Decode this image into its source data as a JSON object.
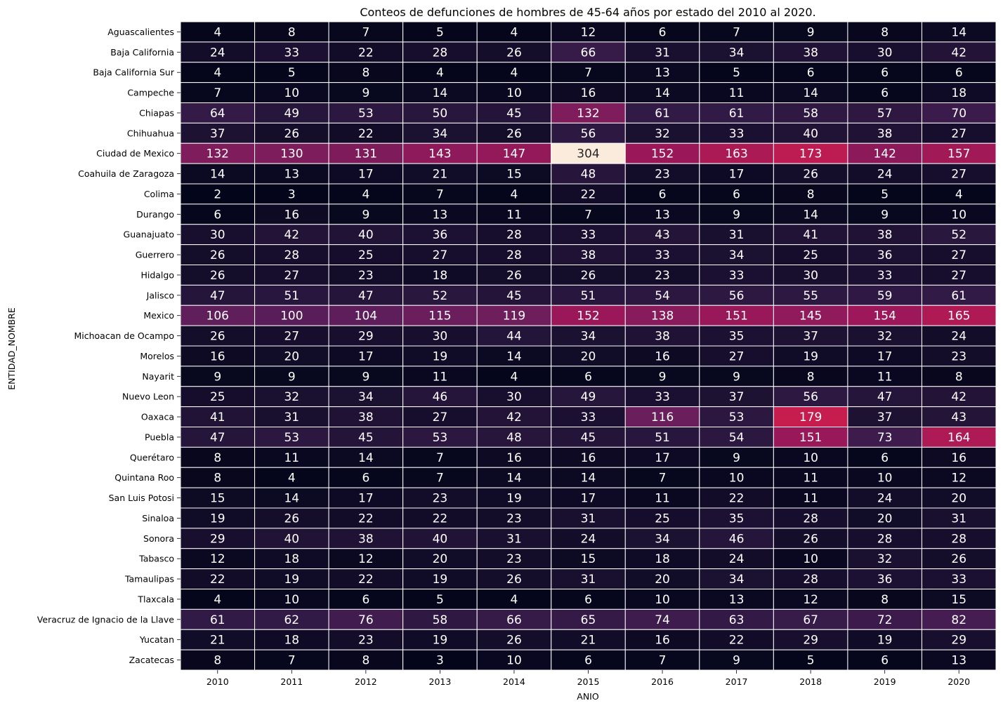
{
  "chart_data": {
    "type": "heatmap",
    "title": "Conteos de defunciones de hombres de 45-64 años por estado del 2010 al 2020.",
    "xlabel": "ANIO",
    "ylabel": "ENTIDAD_NOMBRE",
    "colormap": "rocket",
    "color_range": [
      2,
      304
    ],
    "cell_border_color": "#ffffff",
    "columns": [
      "2010",
      "2011",
      "2012",
      "2013",
      "2014",
      "2015",
      "2016",
      "2017",
      "2018",
      "2019",
      "2020"
    ],
    "rows": [
      "Aguascalientes",
      "Baja California",
      "Baja California Sur",
      "Campeche",
      "Chiapas",
      "Chihuahua",
      "Ciudad de Mexico",
      "Coahuila de Zaragoza",
      "Colima",
      "Durango",
      "Guanajuato",
      "Guerrero",
      "Hidalgo",
      "Jalisco",
      "Mexico",
      "Michoacan de Ocampo",
      "Morelos",
      "Nayarit",
      "Nuevo Leon",
      "Oaxaca",
      "Puebla",
      "Querétaro",
      "Quintana Roo",
      "San Luis Potosi",
      "Sinaloa",
      "Sonora",
      "Tabasco",
      "Tamaulipas",
      "Tlaxcala",
      "Veracruz de Ignacio de la Llave",
      "Yucatan",
      "Zacatecas"
    ],
    "values": [
      [
        4,
        8,
        7,
        5,
        4,
        12,
        6,
        7,
        9,
        8,
        14
      ],
      [
        24,
        33,
        22,
        28,
        26,
        66,
        31,
        34,
        38,
        30,
        42
      ],
      [
        4,
        5,
        8,
        4,
        4,
        7,
        13,
        5,
        6,
        6,
        6
      ],
      [
        7,
        10,
        9,
        14,
        10,
        16,
        14,
        11,
        14,
        6,
        18
      ],
      [
        64,
        49,
        53,
        50,
        45,
        132,
        61,
        61,
        58,
        57,
        70
      ],
      [
        37,
        26,
        22,
        34,
        26,
        56,
        32,
        33,
        40,
        38,
        27
      ],
      [
        132,
        130,
        131,
        143,
        147,
        304,
        152,
        163,
        173,
        142,
        157
      ],
      [
        14,
        13,
        17,
        21,
        15,
        48,
        23,
        17,
        26,
        24,
        27
      ],
      [
        2,
        3,
        4,
        7,
        4,
        22,
        6,
        6,
        8,
        5,
        4
      ],
      [
        6,
        16,
        9,
        13,
        11,
        7,
        13,
        9,
        14,
        9,
        10
      ],
      [
        30,
        42,
        40,
        36,
        28,
        33,
        43,
        31,
        41,
        38,
        52
      ],
      [
        26,
        28,
        25,
        27,
        28,
        38,
        33,
        34,
        25,
        36,
        27
      ],
      [
        26,
        27,
        23,
        18,
        26,
        26,
        23,
        33,
        30,
        33,
        27
      ],
      [
        47,
        51,
        47,
        52,
        45,
        51,
        54,
        56,
        55,
        59,
        61
      ],
      [
        106,
        100,
        104,
        115,
        119,
        152,
        138,
        151,
        145,
        154,
        165
      ],
      [
        26,
        27,
        29,
        30,
        44,
        34,
        38,
        35,
        37,
        32,
        24
      ],
      [
        16,
        20,
        17,
        19,
        14,
        20,
        16,
        27,
        19,
        17,
        23
      ],
      [
        9,
        9,
        9,
        11,
        4,
        6,
        9,
        9,
        8,
        11,
        8
      ],
      [
        25,
        32,
        34,
        46,
        30,
        49,
        33,
        37,
        56,
        47,
        42
      ],
      [
        41,
        31,
        38,
        27,
        42,
        33,
        116,
        53,
        179,
        37,
        43
      ],
      [
        47,
        53,
        45,
        53,
        48,
        45,
        51,
        54,
        151,
        73,
        164
      ],
      [
        8,
        11,
        14,
        7,
        16,
        16,
        17,
        9,
        10,
        6,
        16
      ],
      [
        8,
        4,
        6,
        7,
        14,
        14,
        7,
        10,
        11,
        10,
        12
      ],
      [
        15,
        14,
        17,
        23,
        19,
        17,
        11,
        22,
        11,
        24,
        20
      ],
      [
        19,
        26,
        22,
        22,
        23,
        31,
        25,
        35,
        28,
        20,
        31
      ],
      [
        29,
        40,
        38,
        40,
        31,
        24,
        34,
        46,
        26,
        28,
        28
      ],
      [
        12,
        18,
        12,
        20,
        23,
        15,
        18,
        24,
        10,
        32,
        26
      ],
      [
        22,
        19,
        22,
        19,
        26,
        31,
        20,
        34,
        28,
        36,
        33
      ],
      [
        4,
        10,
        6,
        5,
        4,
        6,
        10,
        13,
        12,
        8,
        15
      ],
      [
        61,
        62,
        76,
        58,
        66,
        65,
        74,
        63,
        67,
        72,
        82
      ],
      [
        21,
        18,
        23,
        19,
        26,
        21,
        16,
        22,
        29,
        19,
        29
      ],
      [
        8,
        7,
        8,
        3,
        10,
        6,
        7,
        9,
        5,
        6,
        13
      ]
    ]
  }
}
